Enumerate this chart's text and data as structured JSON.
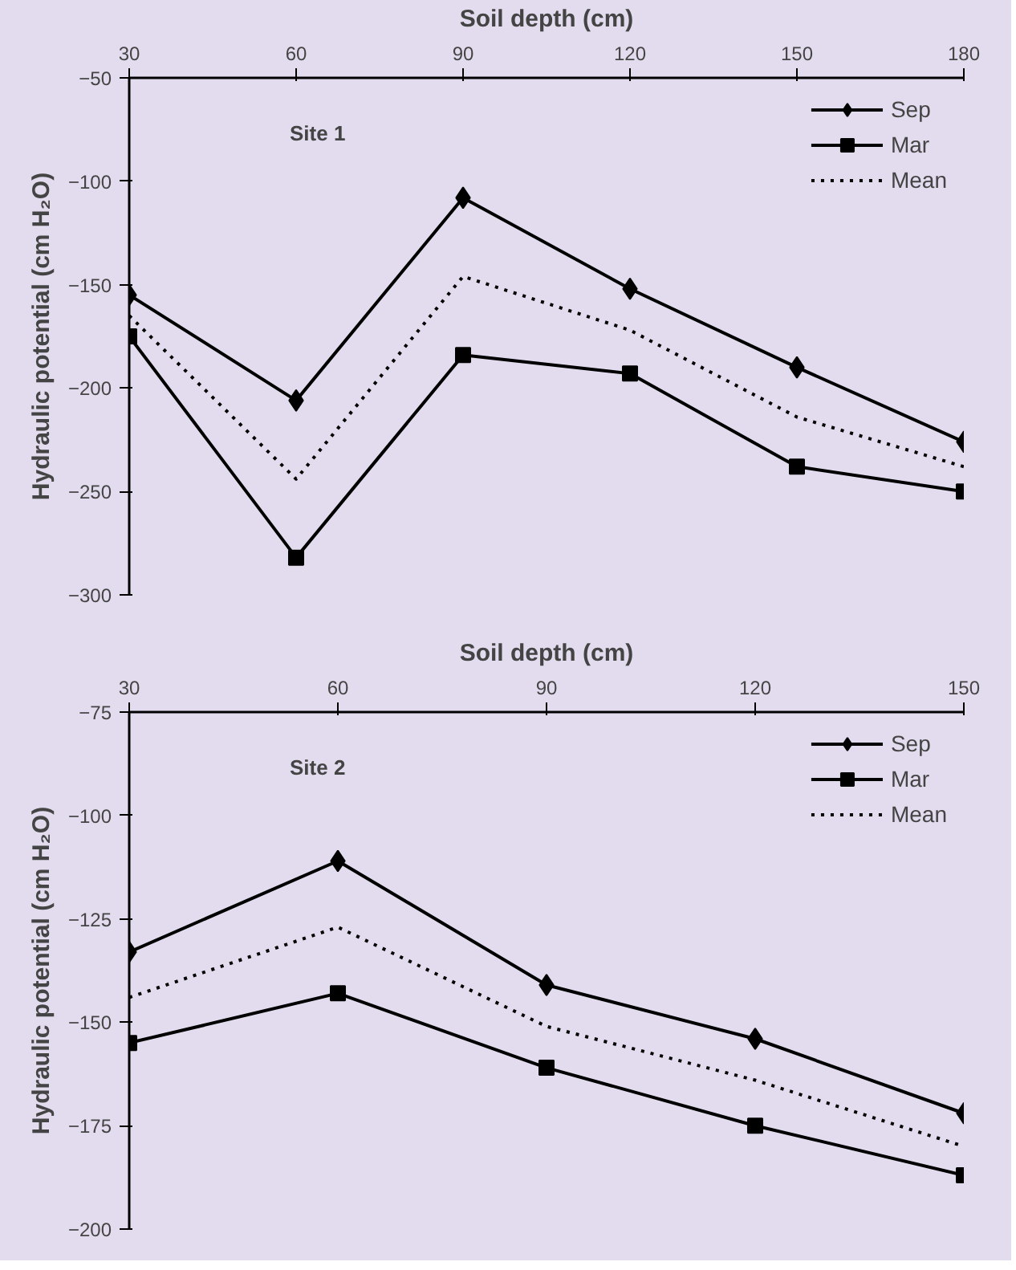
{
  "chart_data": [
    {
      "type": "line",
      "xlabel": "Soil depth (cm)",
      "ylabel": "Hydraulic potential (cm H₂O)",
      "annotations": [
        "Site 1"
      ],
      "x": [
        30,
        60,
        90,
        120,
        150,
        180
      ],
      "xlim": [
        30,
        180
      ],
      "xticks": [
        30,
        60,
        90,
        120,
        150,
        180
      ],
      "ylim": [
        -300,
        -50
      ],
      "yticks": [
        -300,
        -250,
        -200,
        -150,
        -100,
        -50
      ],
      "grid": false,
      "legend": "top right",
      "series": [
        {
          "name": "Sep",
          "color": "#000000",
          "marker": "diamond",
          "line_style": "solid",
          "values": [
            -155,
            -206,
            -108,
            -152,
            -190,
            -226
          ]
        },
        {
          "name": "Mar",
          "color": "#000000",
          "marker": "square",
          "line_style": "solid",
          "values": [
            -175,
            -282,
            -184,
            -193,
            -238,
            -250
          ]
        },
        {
          "name": "Mean",
          "color": "#000000",
          "marker": "none",
          "line_style": "dotted",
          "values": [
            -165,
            -244,
            -146,
            -172,
            -214,
            -238
          ]
        }
      ]
    },
    {
      "type": "line",
      "xlabel": "Soil depth (cm)",
      "ylabel": "Hydraulic potential (cm H₂O)",
      "annotations": [
        "Site 2"
      ],
      "x": [
        30,
        60,
        90,
        120,
        150
      ],
      "xlim": [
        30,
        150
      ],
      "xticks": [
        30,
        60,
        90,
        120,
        150
      ],
      "ylim": [
        -200,
        -75
      ],
      "yticks": [
        -200,
        -175,
        -150,
        -125,
        -100,
        -75
      ],
      "grid": false,
      "legend": "top right",
      "series": [
        {
          "name": "Sep",
          "color": "#000000",
          "marker": "diamond",
          "line_style": "solid",
          "values": [
            -133,
            -111,
            -141,
            -154,
            -172
          ]
        },
        {
          "name": "Mar",
          "color": "#000000",
          "marker": "square",
          "line_style": "solid",
          "values": [
            -155,
            -143,
            -161,
            -175,
            -187
          ]
        },
        {
          "name": "Mean",
          "color": "#000000",
          "marker": "none",
          "line_style": "dotted",
          "values": [
            -144,
            -127,
            -151,
            -164,
            -180
          ]
        }
      ]
    }
  ]
}
